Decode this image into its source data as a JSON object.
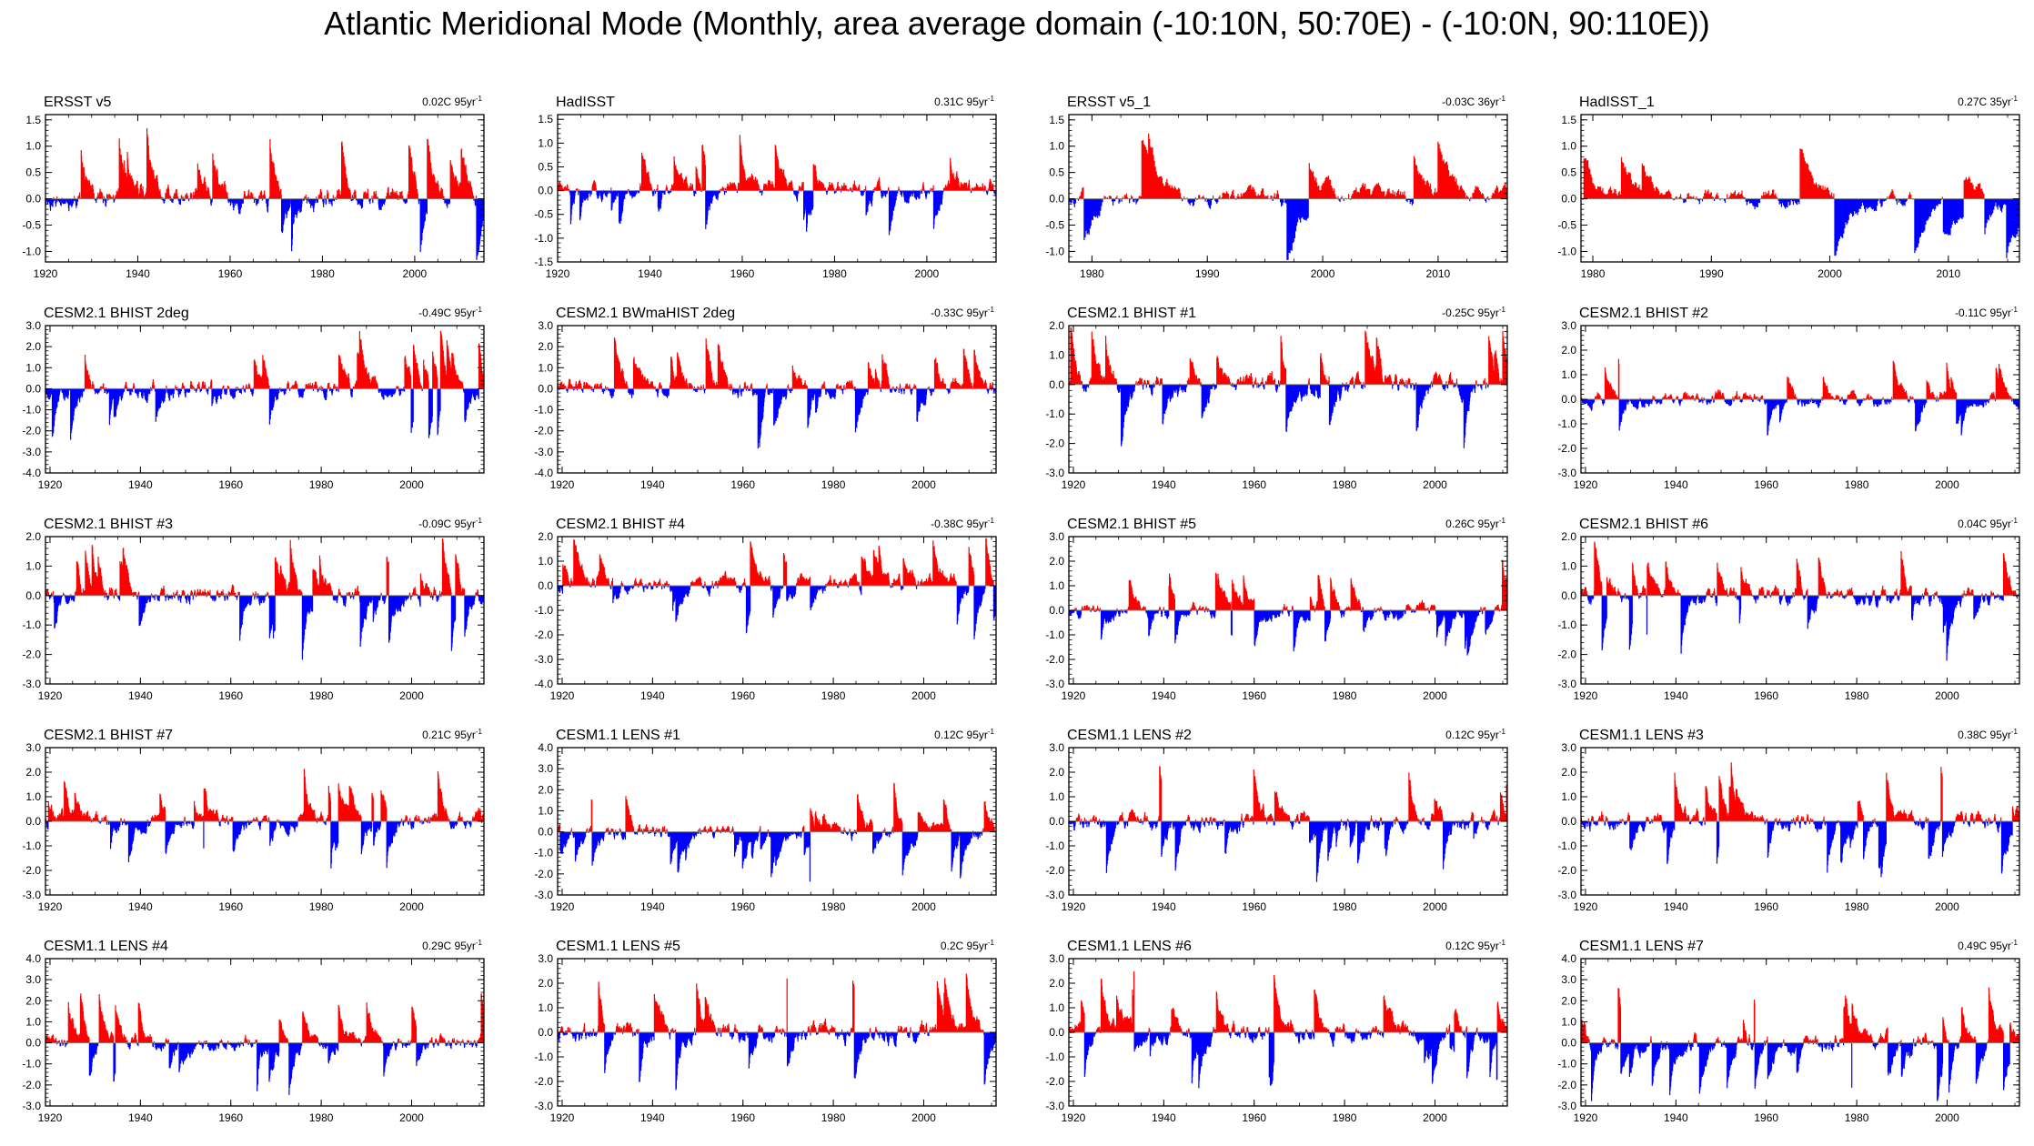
{
  "title": "Atlantic Meridional Mode (Monthly, area average domain (-10:10N, 50:70E) - (-10:0N, 90:110E))",
  "colors": {
    "positive": "#ff0000",
    "negative": "#0000ff",
    "frame": "#000000",
    "zero_line": "#808080"
  },
  "chart_data": [
    {
      "type": "bar",
      "title": "ERSST v5",
      "trend": "0.02C 95yr",
      "trend_exponent": "-1",
      "xlim": [
        1920,
        2015
      ],
      "xticks": [
        1920,
        1940,
        1960,
        1980,
        2000
      ],
      "xtick_labels": [
        "1920",
        "1940",
        "1960",
        "1980",
        "2000"
      ],
      "ylim": [
        -1.2,
        1.6
      ],
      "yticks": [
        1.5,
        1.0,
        0.5,
        0.0,
        -0.5,
        -1.0
      ],
      "ytick_labels": [
        "1.5",
        "1.0",
        "0.5",
        "0.0",
        "-0.5",
        "-1.0"
      ],
      "amp": 0.65,
      "seed": 11,
      "bias": 0.0
    },
    {
      "type": "bar",
      "title": "HadISST",
      "trend": "0.31C 95yr",
      "trend_exponent": "-1",
      "xlim": [
        1920,
        2015
      ],
      "xticks": [
        1920,
        1940,
        1960,
        1980,
        2000
      ],
      "xtick_labels": [
        "1920",
        "1940",
        "1960",
        "1980",
        "2000"
      ],
      "ylim": [
        -1.5,
        1.6
      ],
      "yticks": [
        1.5,
        1.0,
        0.5,
        0.0,
        -0.5,
        -1.0,
        -1.5
      ],
      "ytick_labels": [
        "1.5",
        "1.0",
        "0.5",
        "0.0",
        "-0.5",
        "-1.0",
        "-1.5"
      ],
      "amp": 0.55,
      "seed": 23,
      "bias": 0.05
    },
    {
      "type": "bar",
      "title": "ERSST v5_1",
      "trend": "-0.03C 36yr",
      "trend_exponent": "-1",
      "xlim": [
        1978,
        2016
      ],
      "xticks": [
        1980,
        1990,
        2000,
        2010
      ],
      "xtick_labels": [
        "1980",
        "1990",
        "2000",
        "2010"
      ],
      "ylim": [
        -1.2,
        1.6
      ],
      "yticks": [
        1.5,
        1.0,
        0.5,
        0.0,
        -0.5,
        -1.0
      ],
      "ytick_labels": [
        "1.5",
        "1.0",
        "0.5",
        "0.0",
        "-0.5",
        "-1.0"
      ],
      "amp": 0.6,
      "seed": 37,
      "bias": 0.0
    },
    {
      "type": "bar",
      "title": "HadISST_1",
      "trend": "0.27C 35yr",
      "trend_exponent": "-1",
      "xlim": [
        1979,
        2016
      ],
      "xticks": [
        1980,
        1990,
        2000,
        2010
      ],
      "xtick_labels": [
        "1980",
        "1990",
        "2000",
        "2010"
      ],
      "ylim": [
        -1.2,
        1.6
      ],
      "yticks": [
        1.5,
        1.0,
        0.5,
        0.0,
        -0.5,
        -1.0
      ],
      "ytick_labels": [
        "1.5",
        "1.0",
        "0.5",
        "0.0",
        "-0.5",
        "-1.0"
      ],
      "amp": 0.55,
      "seed": 41,
      "bias": 0.0
    },
    {
      "type": "bar",
      "title": "CESM2.1 BHIST 2deg",
      "trend": "-0.49C 95yr",
      "trend_exponent": "-1",
      "xlim": [
        1919,
        2016
      ],
      "xticks": [
        1920,
        1940,
        1960,
        1980,
        2000
      ],
      "xtick_labels": [
        "1920",
        "1940",
        "1960",
        "1980",
        "2000"
      ],
      "ylim": [
        -4.0,
        3.0
      ],
      "yticks": [
        3.0,
        2.0,
        1.0,
        0.0,
        -1.0,
        -2.0,
        -3.0,
        -4.0
      ],
      "ytick_labels": [
        "3.0",
        "2.0",
        "1.0",
        "0.0",
        "-1.0",
        "-2.0",
        "-3.0",
        "-4.0"
      ],
      "amp": 1.3,
      "seed": 53,
      "bias": 0.0
    },
    {
      "type": "bar",
      "title": "CESM2.1 BWmaHIST 2deg",
      "trend": "-0.33C 95yr",
      "trend_exponent": "-1",
      "xlim": [
        1919,
        2016
      ],
      "xticks": [
        1920,
        1940,
        1960,
        1980,
        2000
      ],
      "xtick_labels": [
        "1920",
        "1940",
        "1960",
        "1980",
        "2000"
      ],
      "ylim": [
        -4.0,
        3.0
      ],
      "yticks": [
        3.0,
        2.0,
        1.0,
        0.0,
        -1.0,
        -2.0,
        -3.0,
        -4.0
      ],
      "ytick_labels": [
        "3.0",
        "2.0",
        "1.0",
        "0.0",
        "-1.0",
        "-2.0",
        "-3.0",
        "-4.0"
      ],
      "amp": 1.3,
      "seed": 61,
      "bias": 0.0
    },
    {
      "type": "bar",
      "title": "CESM2.1 BHIST #1",
      "trend": "-0.25C 95yr",
      "trend_exponent": "-1",
      "xlim": [
        1919,
        2016
      ],
      "xticks": [
        1920,
        1940,
        1960,
        1980,
        2000
      ],
      "xtick_labels": [
        "1920",
        "1940",
        "1960",
        "1980",
        "2000"
      ],
      "ylim": [
        -3.0,
        2.0
      ],
      "yticks": [
        2.0,
        1.0,
        0.0,
        -1.0,
        -2.0,
        -3.0
      ],
      "ytick_labels": [
        "2.0",
        "1.0",
        "0.0",
        "-1.0",
        "-2.0",
        "-3.0"
      ],
      "amp": 1.0,
      "seed": 71,
      "bias": 0.0
    },
    {
      "type": "bar",
      "title": "CESM2.1 BHIST #2",
      "trend": "-0.11C 95yr",
      "trend_exponent": "-1",
      "xlim": [
        1919,
        2016
      ],
      "xticks": [
        1920,
        1940,
        1960,
        1980,
        2000
      ],
      "xtick_labels": [
        "1920",
        "1940",
        "1960",
        "1980",
        "2000"
      ],
      "ylim": [
        -3.0,
        3.0
      ],
      "yticks": [
        3.0,
        2.0,
        1.0,
        0.0,
        -1.0,
        -2.0,
        -3.0
      ],
      "ytick_labels": [
        "3.0",
        "2.0",
        "1.0",
        "0.0",
        "-1.0",
        "-2.0",
        "-3.0"
      ],
      "amp": 0.85,
      "seed": 79,
      "bias": 0.0
    },
    {
      "type": "bar",
      "title": "CESM2.1 BHIST #3",
      "trend": "-0.09C 95yr",
      "trend_exponent": "-1",
      "xlim": [
        1919,
        2016
      ],
      "xticks": [
        1920,
        1940,
        1960,
        1980,
        2000
      ],
      "xtick_labels": [
        "1920",
        "1940",
        "1960",
        "1980",
        "2000"
      ],
      "ylim": [
        -3.0,
        2.0
      ],
      "yticks": [
        2.0,
        1.0,
        0.0,
        -1.0,
        -2.0,
        -3.0
      ],
      "ytick_labels": [
        "2.0",
        "1.0",
        "0.0",
        "-1.0",
        "-2.0",
        "-3.0"
      ],
      "amp": 0.95,
      "seed": 83,
      "bias": 0.0
    },
    {
      "type": "bar",
      "title": "CESM2.1 BHIST #4",
      "trend": "-0.38C 95yr",
      "trend_exponent": "-1",
      "xlim": [
        1919,
        2016
      ],
      "xticks": [
        1920,
        1940,
        1960,
        1980,
        2000
      ],
      "xtick_labels": [
        "1920",
        "1940",
        "1960",
        "1980",
        "2000"
      ],
      "ylim": [
        -4.0,
        2.0
      ],
      "yticks": [
        2.0,
        1.0,
        0.0,
        -1.0,
        -2.0,
        -3.0,
        -4.0
      ],
      "ytick_labels": [
        "2.0",
        "1.0",
        "0.0",
        "-1.0",
        "-2.0",
        "-3.0",
        "-4.0"
      ],
      "amp": 1.0,
      "seed": 97,
      "bias": 0.1
    },
    {
      "type": "bar",
      "title": "CESM2.1 BHIST #5",
      "trend": "0.26C 95yr",
      "trend_exponent": "-1",
      "xlim": [
        1919,
        2016
      ],
      "xticks": [
        1920,
        1940,
        1960,
        1980,
        2000
      ],
      "xtick_labels": [
        "1920",
        "1940",
        "1960",
        "1980",
        "2000"
      ],
      "ylim": [
        -3.0,
        3.0
      ],
      "yticks": [
        3.0,
        2.0,
        1.0,
        0.0,
        -1.0,
        -2.0,
        -3.0
      ],
      "ytick_labels": [
        "3.0",
        "2.0",
        "1.0",
        "0.0",
        "-1.0",
        "-2.0",
        "-3.0"
      ],
      "amp": 0.9,
      "seed": 101,
      "bias": 0.0
    },
    {
      "type": "bar",
      "title": "CESM2.1 BHIST #6",
      "trend": "0.04C 95yr",
      "trend_exponent": "-1",
      "xlim": [
        1919,
        2016
      ],
      "xticks": [
        1920,
        1940,
        1960,
        1980,
        2000
      ],
      "xtick_labels": [
        "1920",
        "1940",
        "1960",
        "1980",
        "2000"
      ],
      "ylim": [
        -3.0,
        2.0
      ],
      "yticks": [
        2.0,
        1.0,
        0.0,
        -1.0,
        -2.0,
        -3.0
      ],
      "ytick_labels": [
        "2.0",
        "1.0",
        "0.0",
        "-1.0",
        "-2.0",
        "-3.0"
      ],
      "amp": 0.9,
      "seed": 107,
      "bias": 0.0
    },
    {
      "type": "bar",
      "title": "CESM2.1 BHIST #7",
      "trend": "0.21C 95yr",
      "trend_exponent": "-1",
      "xlim": [
        1919,
        2016
      ],
      "xticks": [
        1920,
        1940,
        1960,
        1980,
        2000
      ],
      "xtick_labels": [
        "1920",
        "1940",
        "1960",
        "1980",
        "2000"
      ],
      "ylim": [
        -3.0,
        3.0
      ],
      "yticks": [
        3.0,
        2.0,
        1.0,
        0.0,
        -1.0,
        -2.0,
        -3.0
      ],
      "ytick_labels": [
        "3.0",
        "2.0",
        "1.0",
        "0.0",
        "-1.0",
        "-2.0",
        "-3.0"
      ],
      "amp": 1.0,
      "seed": 113,
      "bias": 0.0
    },
    {
      "type": "bar",
      "title": "CESM1.1 LENS #1",
      "trend": "0.12C 95yr",
      "trend_exponent": "-1",
      "xlim": [
        1919,
        2016
      ],
      "xticks": [
        1920,
        1940,
        1960,
        1980,
        2000
      ],
      "xtick_labels": [
        "1920",
        "1940",
        "1960",
        "1980",
        "2000"
      ],
      "ylim": [
        -3.0,
        4.0
      ],
      "yticks": [
        4.0,
        3.0,
        2.0,
        1.0,
        0.0,
        -1.0,
        -2.0,
        -3.0
      ],
      "ytick_labels": [
        "4.0",
        "3.0",
        "2.0",
        "1.0",
        "0.0",
        "-1.0",
        "-2.0",
        "-3.0"
      ],
      "amp": 1.1,
      "seed": 127,
      "bias": 0.0
    },
    {
      "type": "bar",
      "title": "CESM1.1 LENS #2",
      "trend": "0.12C 95yr",
      "trend_exponent": "-1",
      "xlim": [
        1919,
        2016
      ],
      "xticks": [
        1920,
        1940,
        1960,
        1980,
        2000
      ],
      "xtick_labels": [
        "1920",
        "1940",
        "1960",
        "1980",
        "2000"
      ],
      "ylim": [
        -3.0,
        3.0
      ],
      "yticks": [
        3.0,
        2.0,
        1.0,
        0.0,
        -1.0,
        -2.0,
        -3.0
      ],
      "ytick_labels": [
        "3.0",
        "2.0",
        "1.0",
        "0.0",
        "-1.0",
        "-2.0",
        "-3.0"
      ],
      "amp": 1.1,
      "seed": 131,
      "bias": 0.0
    },
    {
      "type": "bar",
      "title": "CESM1.1 LENS #3",
      "trend": "0.38C 95yr",
      "trend_exponent": "-1",
      "xlim": [
        1919,
        2016
      ],
      "xticks": [
        1920,
        1940,
        1960,
        1980,
        2000
      ],
      "xtick_labels": [
        "1920",
        "1940",
        "1960",
        "1980",
        "2000"
      ],
      "ylim": [
        -3.0,
        3.0
      ],
      "yticks": [
        3.0,
        2.0,
        1.0,
        0.0,
        -1.0,
        -2.0,
        -3.0
      ],
      "ytick_labels": [
        "3.0",
        "2.0",
        "1.0",
        "0.0",
        "-1.0",
        "-2.0",
        "-3.0"
      ],
      "amp": 1.1,
      "seed": 137,
      "bias": 0.0
    },
    {
      "type": "bar",
      "title": "CESM1.1 LENS #4",
      "trend": "0.29C 95yr",
      "trend_exponent": "-1",
      "xlim": [
        1919,
        2016
      ],
      "xticks": [
        1920,
        1940,
        1960,
        1980,
        2000
      ],
      "xtick_labels": [
        "1920",
        "1940",
        "1960",
        "1980",
        "2000"
      ],
      "ylim": [
        -3.0,
        4.0
      ],
      "yticks": [
        4.0,
        3.0,
        2.0,
        1.0,
        0.0,
        -1.0,
        -2.0,
        -3.0
      ],
      "ytick_labels": [
        "4.0",
        "3.0",
        "2.0",
        "1.0",
        "0.0",
        "-1.0",
        "-2.0",
        "-3.0"
      ],
      "amp": 1.1,
      "seed": 139,
      "bias": 0.0
    },
    {
      "type": "bar",
      "title": "CESM1.1 LENS #5",
      "trend": "0.2C 95yr",
      "trend_exponent": "-1",
      "xlim": [
        1919,
        2016
      ],
      "xticks": [
        1920,
        1940,
        1960,
        1980,
        2000
      ],
      "xtick_labels": [
        "1920",
        "1940",
        "1960",
        "1980",
        "2000"
      ],
      "ylim": [
        -3.0,
        3.0
      ],
      "yticks": [
        3.0,
        2.0,
        1.0,
        0.0,
        -1.0,
        -2.0,
        -3.0
      ],
      "ytick_labels": [
        "3.0",
        "2.0",
        "1.0",
        "0.0",
        "-1.0",
        "-2.0",
        "-3.0"
      ],
      "amp": 1.2,
      "seed": 149,
      "bias": 0.0
    },
    {
      "type": "bar",
      "title": "CESM1.1 LENS #6",
      "trend": "0.12C 95yr",
      "trend_exponent": "-1",
      "xlim": [
        1919,
        2016
      ],
      "xticks": [
        1920,
        1940,
        1960,
        1980,
        2000
      ],
      "xtick_labels": [
        "1920",
        "1940",
        "1960",
        "1980",
        "2000"
      ],
      "ylim": [
        -3.0,
        3.0
      ],
      "yticks": [
        3.0,
        2.0,
        1.0,
        0.0,
        -1.0,
        -2.0,
        -3.0
      ],
      "ytick_labels": [
        "3.0",
        "2.0",
        "1.0",
        "0.0",
        "-1.0",
        "-2.0",
        "-3.0"
      ],
      "amp": 1.15,
      "seed": 151,
      "bias": 0.0
    },
    {
      "type": "bar",
      "title": "CESM1.1 LENS #7",
      "trend": "0.49C 95yr",
      "trend_exponent": "-1",
      "xlim": [
        1919,
        2016
      ],
      "xticks": [
        1920,
        1940,
        1960,
        1980,
        2000
      ],
      "xtick_labels": [
        "1920",
        "1940",
        "1960",
        "1980",
        "2000"
      ],
      "ylim": [
        -3.0,
        4.0
      ],
      "yticks": [
        4.0,
        3.0,
        2.0,
        1.0,
        0.0,
        -1.0,
        -2.0,
        -3.0
      ],
      "ytick_labels": [
        "4.0",
        "3.0",
        "2.0",
        "1.0",
        "0.0",
        "-1.0",
        "-2.0",
        "-3.0"
      ],
      "amp": 1.3,
      "seed": 157,
      "bias": 0.0
    }
  ]
}
